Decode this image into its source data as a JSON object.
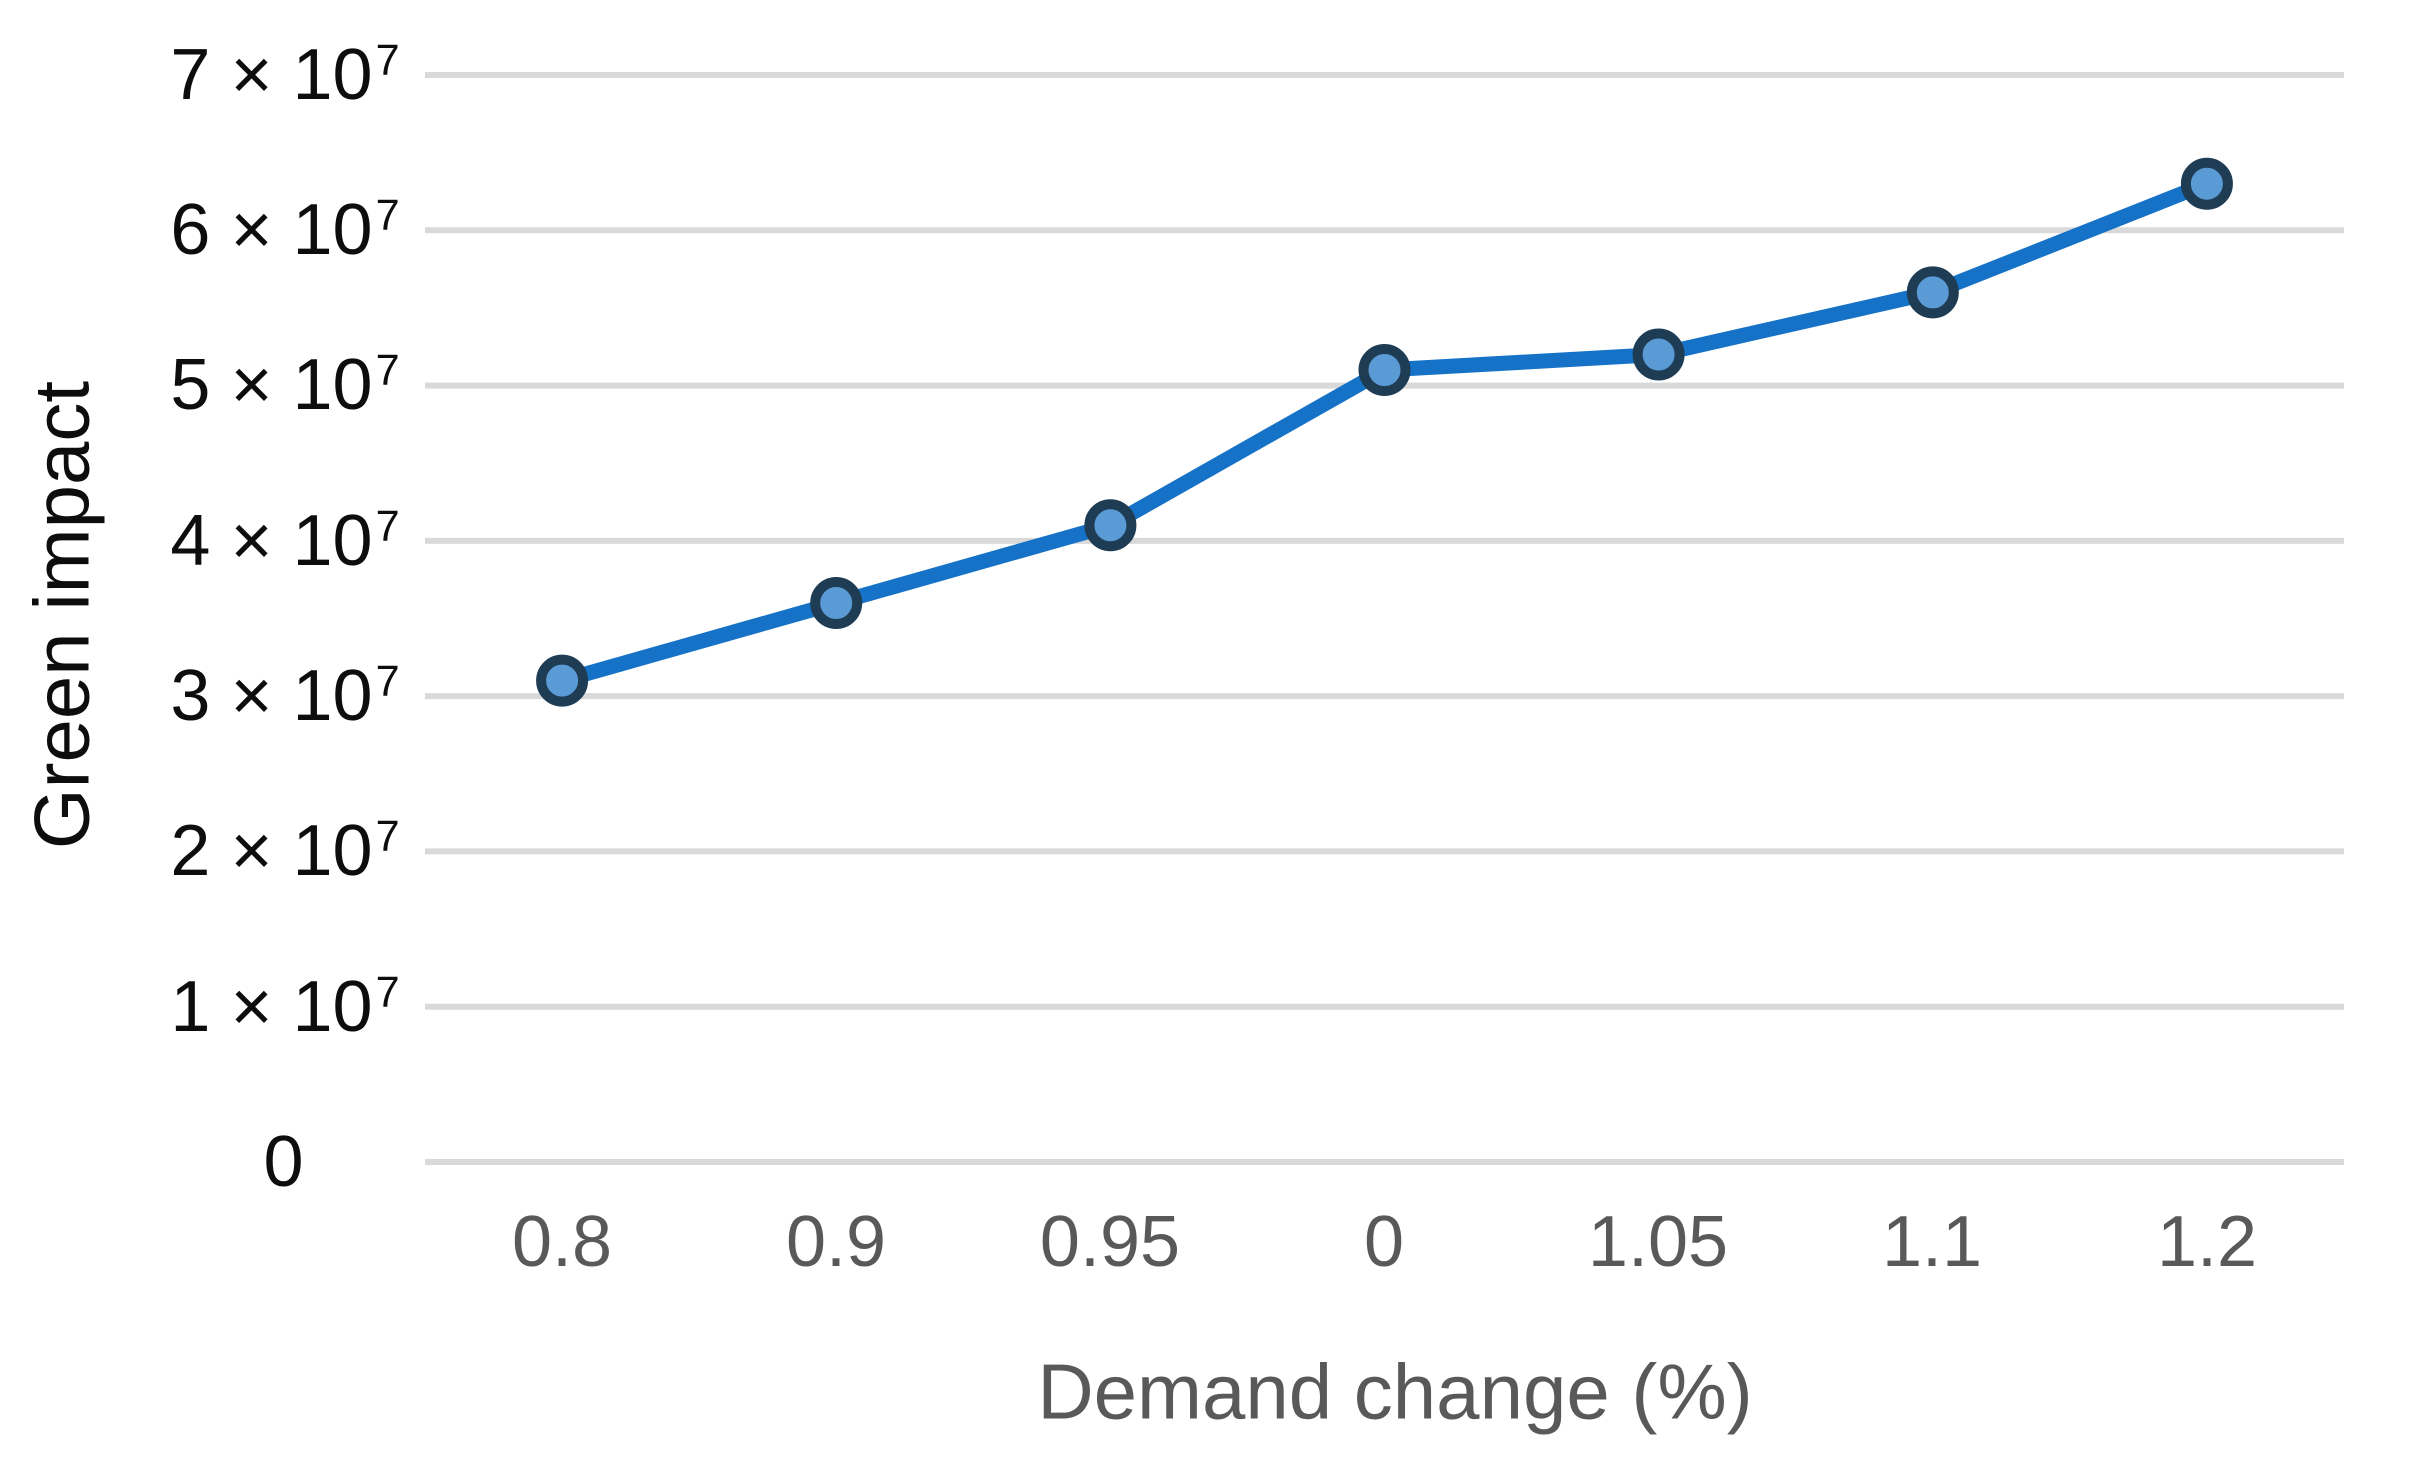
{
  "chart_data": {
    "type": "line",
    "title": "",
    "xlabel": "Demand change (%)",
    "ylabel": "Green impact",
    "categories": [
      "0.8",
      "0.9",
      "0.95",
      "0",
      "1.05",
      "1.1",
      "1.2"
    ],
    "series": [
      {
        "name": "Green impact",
        "values": [
          31000000,
          36000000,
          41000000,
          51000000,
          52000000,
          56000000,
          63000000
        ]
      }
    ],
    "ylim": [
      0,
      70000000
    ],
    "ytick_step": 10000000,
    "yticks": [
      {
        "label": "0"
      },
      {
        "label": "1 × 10",
        "exp": "7"
      },
      {
        "label": "2 × 10",
        "exp": "7"
      },
      {
        "label": "3 × 10",
        "exp": "7"
      },
      {
        "label": "4 × 10",
        "exp": "7"
      },
      {
        "label": "5 × 10",
        "exp": "7"
      },
      {
        "label": "6 × 10",
        "exp": "7"
      },
      {
        "label": "7 × 10",
        "exp": "7"
      }
    ],
    "grid": "horizontal",
    "legend": "none",
    "colors": {
      "line": "#1572C6",
      "marker_fill": "#5B9BD5",
      "marker_border": "#1F3C55",
      "gridline": "#D9D9D9",
      "x_text": "#595959",
      "y_text": "#0d0d0d"
    }
  }
}
